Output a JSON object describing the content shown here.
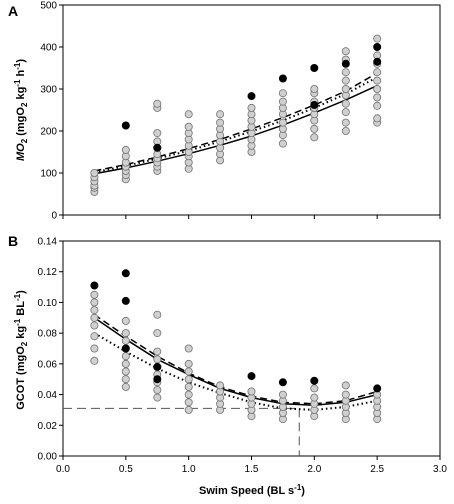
{
  "x_axis": {
    "label_prefix": "Swim Speed (BL s",
    "label_sup": "-1",
    "label_suffix": ")",
    "ticks": [
      "0.0",
      "0.5",
      "1.0",
      "1.5",
      "2.0",
      "2.5",
      "3.0"
    ]
  },
  "panelA": {
    "letter": "A",
    "ylabel": {
      "i": "MO",
      "s1": "2",
      "t2": " (mgO",
      "s2": "2",
      "t3": " kg",
      "s3": "-1",
      "t4": " h",
      "s4": "-1",
      "t5": ")"
    },
    "yticks": [
      "0",
      "100",
      "200",
      "300",
      "400",
      "500"
    ]
  },
  "panelB": {
    "letter": "B",
    "ylabel": {
      "t1": "GCOT (mgO",
      "s1": "2",
      "t2": " kg",
      "s2": "-1",
      "t3": " BL",
      "s3": "-1",
      "t4": ")"
    },
    "yticks": [
      "0.00",
      "0.02",
      "0.04",
      "0.06",
      "0.08",
      "0.10",
      "0.12",
      "0.14"
    ]
  },
  "chart_data": [
    {
      "panel": "A",
      "type": "scatter",
      "xlim": [
        0,
        3
      ],
      "ylim": [
        0,
        500
      ],
      "grid": false,
      "x_levels": [
        0.25,
        0.5,
        0.75,
        1.0,
        1.25,
        1.5,
        1.75,
        2.0,
        2.25,
        2.5
      ],
      "series": [
        {
          "marker": "open-grey-circle",
          "points": [
            [
              0.25,
              55
            ],
            [
              0.25,
              65
            ],
            [
              0.25,
              70
            ],
            [
              0.25,
              80
            ],
            [
              0.25,
              90
            ],
            [
              0.25,
              100
            ],
            [
              0.5,
              85
            ],
            [
              0.5,
              95
            ],
            [
              0.5,
              105
            ],
            [
              0.5,
              115
            ],
            [
              0.5,
              125
            ],
            [
              0.5,
              140
            ],
            [
              0.5,
              155
            ],
            [
              0.75,
              105
            ],
            [
              0.75,
              115
            ],
            [
              0.75,
              125
            ],
            [
              0.75,
              135
            ],
            [
              0.75,
              145
            ],
            [
              0.75,
              160
            ],
            [
              0.75,
              175
            ],
            [
              0.75,
              195
            ],
            [
              0.75,
              255
            ],
            [
              0.75,
              265
            ],
            [
              1.0,
              110
            ],
            [
              1.0,
              125
            ],
            [
              1.0,
              140
            ],
            [
              1.0,
              150
            ],
            [
              1.0,
              165
            ],
            [
              1.0,
              180
            ],
            [
              1.0,
              195
            ],
            [
              1.0,
              210
            ],
            [
              1.0,
              240
            ],
            [
              1.25,
              130
            ],
            [
              1.25,
              145
            ],
            [
              1.25,
              160
            ],
            [
              1.25,
              175
            ],
            [
              1.25,
              190
            ],
            [
              1.25,
              205
            ],
            [
              1.25,
              220
            ],
            [
              1.25,
              240
            ],
            [
              1.5,
              150
            ],
            [
              1.5,
              165
            ],
            [
              1.5,
              180
            ],
            [
              1.5,
              195
            ],
            [
              1.5,
              210
            ],
            [
              1.5,
              225
            ],
            [
              1.5,
              240
            ],
            [
              1.5,
              255
            ],
            [
              1.75,
              170
            ],
            [
              1.75,
              190
            ],
            [
              1.75,
              205
            ],
            [
              1.75,
              220
            ],
            [
              1.75,
              240
            ],
            [
              1.75,
              255
            ],
            [
              1.75,
              270
            ],
            [
              1.75,
              290
            ],
            [
              2.0,
              185
            ],
            [
              2.0,
              205
            ],
            [
              2.0,
              225
            ],
            [
              2.0,
              240
            ],
            [
              2.0,
              255
            ],
            [
              2.0,
              270
            ],
            [
              2.0,
              290
            ],
            [
              2.0,
              300
            ],
            [
              2.25,
              200
            ],
            [
              2.25,
              220
            ],
            [
              2.25,
              245
            ],
            [
              2.25,
              265
            ],
            [
              2.25,
              285
            ],
            [
              2.25,
              300
            ],
            [
              2.25,
              320
            ],
            [
              2.25,
              340
            ],
            [
              2.25,
              370
            ],
            [
              2.25,
              390
            ],
            [
              2.5,
              220
            ],
            [
              2.5,
              230
            ],
            [
              2.5,
              260
            ],
            [
              2.5,
              280
            ],
            [
              2.5,
              300
            ],
            [
              2.5,
              320
            ],
            [
              2.5,
              340
            ],
            [
              2.5,
              360
            ],
            [
              2.5,
              380
            ],
            [
              2.5,
              420
            ]
          ]
        },
        {
          "marker": "filled-black-circle",
          "points": [
            [
              0.5,
              213
            ],
            [
              0.75,
              160
            ],
            [
              1.5,
              283
            ],
            [
              1.75,
              325
            ],
            [
              2.0,
              350
            ],
            [
              2.0,
              262
            ],
            [
              2.25,
              360
            ],
            [
              2.5,
              400
            ],
            [
              2.5,
              365
            ]
          ]
        }
      ],
      "fits": [
        {
          "style": "solid",
          "points": [
            [
              0.25,
              98
            ],
            [
              0.5,
              112
            ],
            [
              0.75,
              128
            ],
            [
              1.0,
              146
            ],
            [
              1.25,
              166
            ],
            [
              1.5,
              188
            ],
            [
              1.75,
              214
            ],
            [
              2.0,
              243
            ],
            [
              2.25,
              274
            ],
            [
              2.5,
              308
            ]
          ]
        },
        {
          "style": "dashed",
          "points": [
            [
              0.25,
              105
            ],
            [
              0.5,
              120
            ],
            [
              0.75,
              138
            ],
            [
              1.0,
              158
            ],
            [
              1.25,
              180
            ],
            [
              1.5,
              205
            ],
            [
              1.75,
              232
            ],
            [
              2.0,
              262
            ],
            [
              2.25,
              295
            ],
            [
              2.5,
              338
            ]
          ]
        },
        {
          "style": "dotted",
          "points": [
            [
              0.25,
              102
            ],
            [
              0.5,
              117
            ],
            [
              0.75,
              134
            ],
            [
              1.0,
              153
            ],
            [
              1.25,
              175
            ],
            [
              1.5,
              199
            ],
            [
              1.75,
              225
            ],
            [
              2.0,
              255
            ],
            [
              2.25,
              288
            ],
            [
              2.5,
              328
            ]
          ]
        }
      ]
    },
    {
      "panel": "B",
      "type": "scatter",
      "xlim": [
        0,
        3
      ],
      "ylim": [
        0,
        0.14
      ],
      "grid": false,
      "x_levels": [
        0.25,
        0.5,
        0.75,
        1.0,
        1.25,
        1.5,
        1.75,
        2.0,
        2.25,
        2.5
      ],
      "series": [
        {
          "marker": "open-grey-circle",
          "points": [
            [
              0.25,
              0.062
            ],
            [
              0.25,
              0.07
            ],
            [
              0.25,
              0.078
            ],
            [
              0.25,
              0.085
            ],
            [
              0.25,
              0.09
            ],
            [
              0.25,
              0.095
            ],
            [
              0.25,
              0.1
            ],
            [
              0.25,
              0.105
            ],
            [
              0.5,
              0.045
            ],
            [
              0.5,
              0.05
            ],
            [
              0.5,
              0.055
            ],
            [
              0.5,
              0.06
            ],
            [
              0.5,
              0.065
            ],
            [
              0.5,
              0.07
            ],
            [
              0.5,
              0.075
            ],
            [
              0.5,
              0.08
            ],
            [
              0.5,
              0.088
            ],
            [
              0.75,
              0.038
            ],
            [
              0.75,
              0.043
            ],
            [
              0.75,
              0.048
            ],
            [
              0.75,
              0.053
            ],
            [
              0.75,
              0.058
            ],
            [
              0.75,
              0.063
            ],
            [
              0.75,
              0.068
            ],
            [
              0.75,
              0.08
            ],
            [
              0.75,
              0.092
            ],
            [
              1.0,
              0.03
            ],
            [
              1.0,
              0.035
            ],
            [
              1.0,
              0.04
            ],
            [
              1.0,
              0.045
            ],
            [
              1.0,
              0.05
            ],
            [
              1.0,
              0.055
            ],
            [
              1.0,
              0.06
            ],
            [
              1.0,
              0.07
            ],
            [
              1.25,
              0.03
            ],
            [
              1.25,
              0.034
            ],
            [
              1.25,
              0.038
            ],
            [
              1.25,
              0.042
            ],
            [
              1.25,
              0.046
            ],
            [
              1.5,
              0.026
            ],
            [
              1.5,
              0.03
            ],
            [
              1.5,
              0.034
            ],
            [
              1.5,
              0.038
            ],
            [
              1.5,
              0.042
            ],
            [
              1.75,
              0.024
            ],
            [
              1.75,
              0.028
            ],
            [
              1.75,
              0.032
            ],
            [
              1.75,
              0.036
            ],
            [
              1.75,
              0.04
            ],
            [
              2.0,
              0.026
            ],
            [
              2.0,
              0.03
            ],
            [
              2.0,
              0.034
            ],
            [
              2.0,
              0.038
            ],
            [
              2.0,
              0.044
            ],
            [
              2.25,
              0.024
            ],
            [
              2.25,
              0.028
            ],
            [
              2.25,
              0.032
            ],
            [
              2.25,
              0.036
            ],
            [
              2.25,
              0.04
            ],
            [
              2.25,
              0.046
            ],
            [
              2.5,
              0.024
            ],
            [
              2.5,
              0.028
            ],
            [
              2.5,
              0.032
            ],
            [
              2.5,
              0.036
            ],
            [
              2.5,
              0.04
            ]
          ]
        },
        {
          "marker": "filled-black-circle",
          "points": [
            [
              0.25,
              0.111
            ],
            [
              0.5,
              0.119
            ],
            [
              0.5,
              0.101
            ],
            [
              0.5,
              0.07
            ],
            [
              0.75,
              0.058
            ],
            [
              0.75,
              0.05
            ],
            [
              1.5,
              0.052
            ],
            [
              1.75,
              0.048
            ],
            [
              2.0,
              0.049
            ],
            [
              2.5,
              0.044
            ]
          ]
        }
      ],
      "fits": [
        {
          "style": "solid",
          "points": [
            [
              0.25,
              0.09
            ],
            [
              0.5,
              0.076
            ],
            [
              0.75,
              0.063
            ],
            [
              1.0,
              0.053
            ],
            [
              1.25,
              0.044
            ],
            [
              1.5,
              0.038
            ],
            [
              1.75,
              0.034
            ],
            [
              2.0,
              0.033
            ],
            [
              2.25,
              0.035
            ],
            [
              2.5,
              0.04
            ]
          ]
        },
        {
          "style": "dashed",
          "points": [
            [
              0.25,
              0.092
            ],
            [
              0.5,
              0.078
            ],
            [
              0.75,
              0.065
            ],
            [
              1.0,
              0.054
            ],
            [
              1.25,
              0.045
            ],
            [
              1.5,
              0.039
            ],
            [
              1.75,
              0.035
            ],
            [
              2.0,
              0.034
            ],
            [
              2.25,
              0.036
            ],
            [
              2.5,
              0.042
            ]
          ]
        },
        {
          "style": "dotted",
          "points": [
            [
              0.25,
              0.08
            ],
            [
              0.5,
              0.068
            ],
            [
              0.75,
              0.057
            ],
            [
              1.0,
              0.048
            ],
            [
              1.25,
              0.041
            ],
            [
              1.5,
              0.035
            ],
            [
              1.75,
              0.031
            ],
            [
              2.0,
              0.03
            ],
            [
              2.25,
              0.032
            ],
            [
              2.5,
              0.036
            ]
          ]
        }
      ],
      "reference_lines": [
        {
          "orientation": "horizontal",
          "y": 0.031,
          "x_to": 1.88,
          "style": "long-dash"
        },
        {
          "orientation": "vertical",
          "x": 1.88,
          "y_to": 0.031,
          "style": "long-dash"
        }
      ]
    }
  ],
  "colors": {
    "open_fill": "#d0d0d0",
    "open_stroke": "#707070",
    "filled": "#000000",
    "line": "#000000"
  }
}
